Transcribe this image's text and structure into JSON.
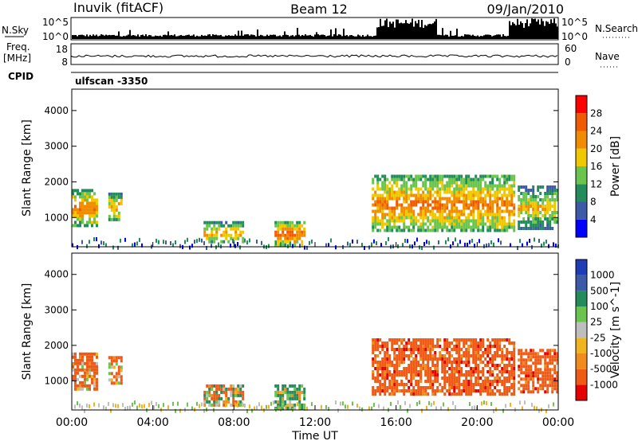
{
  "header": {
    "site": "Inuvik (fitACF)",
    "beam": "Beam 12",
    "date": "09/Jan/2010"
  },
  "panels": {
    "nsky_label": "N.Sky",
    "nsky_ticks": [
      "10^5",
      "10^0"
    ],
    "nsearch_label": "N.Search",
    "freq_label_1": "Freq.",
    "freq_label_2": "[MHz]",
    "freq_ticks": [
      "18",
      "8"
    ],
    "nave_label": "Nave",
    "nave_ticks": [
      "60",
      "0"
    ],
    "cpid_label": "CPID",
    "cpid_value": "ulfscan -3350"
  },
  "colors": {
    "power": [
      "#0000ff",
      "#3c5aa5",
      "#238c5a",
      "#6ac44e",
      "#f0c800",
      "#f08c00",
      "#f05a00",
      "#ff0000"
    ],
    "velocity": [
      "#e60000",
      "#f05a14",
      "#f08c1e",
      "#f0b41e",
      "#bebebe",
      "#6ac44e",
      "#238c5a",
      "#3c5aa5",
      "#1e3cb4"
    ]
  },
  "chart_data": [
    {
      "type": "heatmap",
      "title": "Power",
      "ylabel": "Slant Range [km]",
      "xlim": [
        "00:00",
        "00:00"
      ],
      "x_ticks": [
        "00:00",
        "04:00",
        "08:00",
        "12:00",
        "16:00",
        "20:00",
        "00:00"
      ],
      "ylim": [
        180,
        4600
      ],
      "y_ticks": [
        1000,
        2000,
        3000,
        4000
      ],
      "colorbar": {
        "label": "Power [dB]",
        "range": [
          0,
          32
        ],
        "ticks": [
          "4",
          "8",
          "12",
          "16",
          "20",
          "24",
          "28"
        ]
      },
      "echo_regions": [
        {
          "t_start": 0.0,
          "t_end": 1.2,
          "r_min": 800,
          "r_max": 1800,
          "value": 24
        },
        {
          "t_start": 1.8,
          "t_end": 2.4,
          "r_min": 900,
          "r_max": 1700,
          "value": 22
        },
        {
          "t_start": 6.5,
          "t_end": 8.5,
          "r_min": 300,
          "r_max": 900,
          "value": 22
        },
        {
          "t_start": 10.0,
          "t_end": 11.5,
          "r_min": 250,
          "r_max": 900,
          "value": 26
        },
        {
          "t_start": 14.8,
          "t_end": 21.8,
          "r_min": 600,
          "r_max": 2200,
          "value": 24
        },
        {
          "t_start": 22.0,
          "t_end": 24.0,
          "r_min": 700,
          "r_max": 1900,
          "value": 20
        }
      ]
    },
    {
      "type": "heatmap",
      "title": "Velocity",
      "ylabel": "Slant Range [km]",
      "xlabel": "Time UT",
      "xlim": [
        "00:00",
        "00:00"
      ],
      "x_ticks": [
        "00:00",
        "04:00",
        "08:00",
        "12:00",
        "16:00",
        "20:00",
        "00:00"
      ],
      "ylim": [
        180,
        4600
      ],
      "y_ticks": [
        1000,
        2000,
        3000,
        4000
      ],
      "colorbar": {
        "label": "Velocity [m s^-1]",
        "ticks": [
          "1000",
          "500",
          "100",
          "25",
          "-25",
          "-100",
          "-500",
          "-1000"
        ]
      },
      "echo_regions": [
        {
          "t_start": 0.0,
          "t_end": 1.2,
          "r_min": 800,
          "r_max": 1800,
          "value": -200
        },
        {
          "t_start": 1.8,
          "t_end": 2.4,
          "r_min": 900,
          "r_max": 1700,
          "value": -150
        },
        {
          "t_start": 6.5,
          "t_end": 8.5,
          "r_min": 300,
          "r_max": 900,
          "value": -60
        },
        {
          "t_start": 10.0,
          "t_end": 11.5,
          "r_min": 250,
          "r_max": 900,
          "value": 150
        },
        {
          "t_start": 14.8,
          "t_end": 21.8,
          "r_min": 600,
          "r_max": 2200,
          "value": -300
        },
        {
          "t_start": 22.0,
          "t_end": 24.0,
          "r_min": 700,
          "r_max": 1900,
          "value": -300
        }
      ]
    }
  ]
}
